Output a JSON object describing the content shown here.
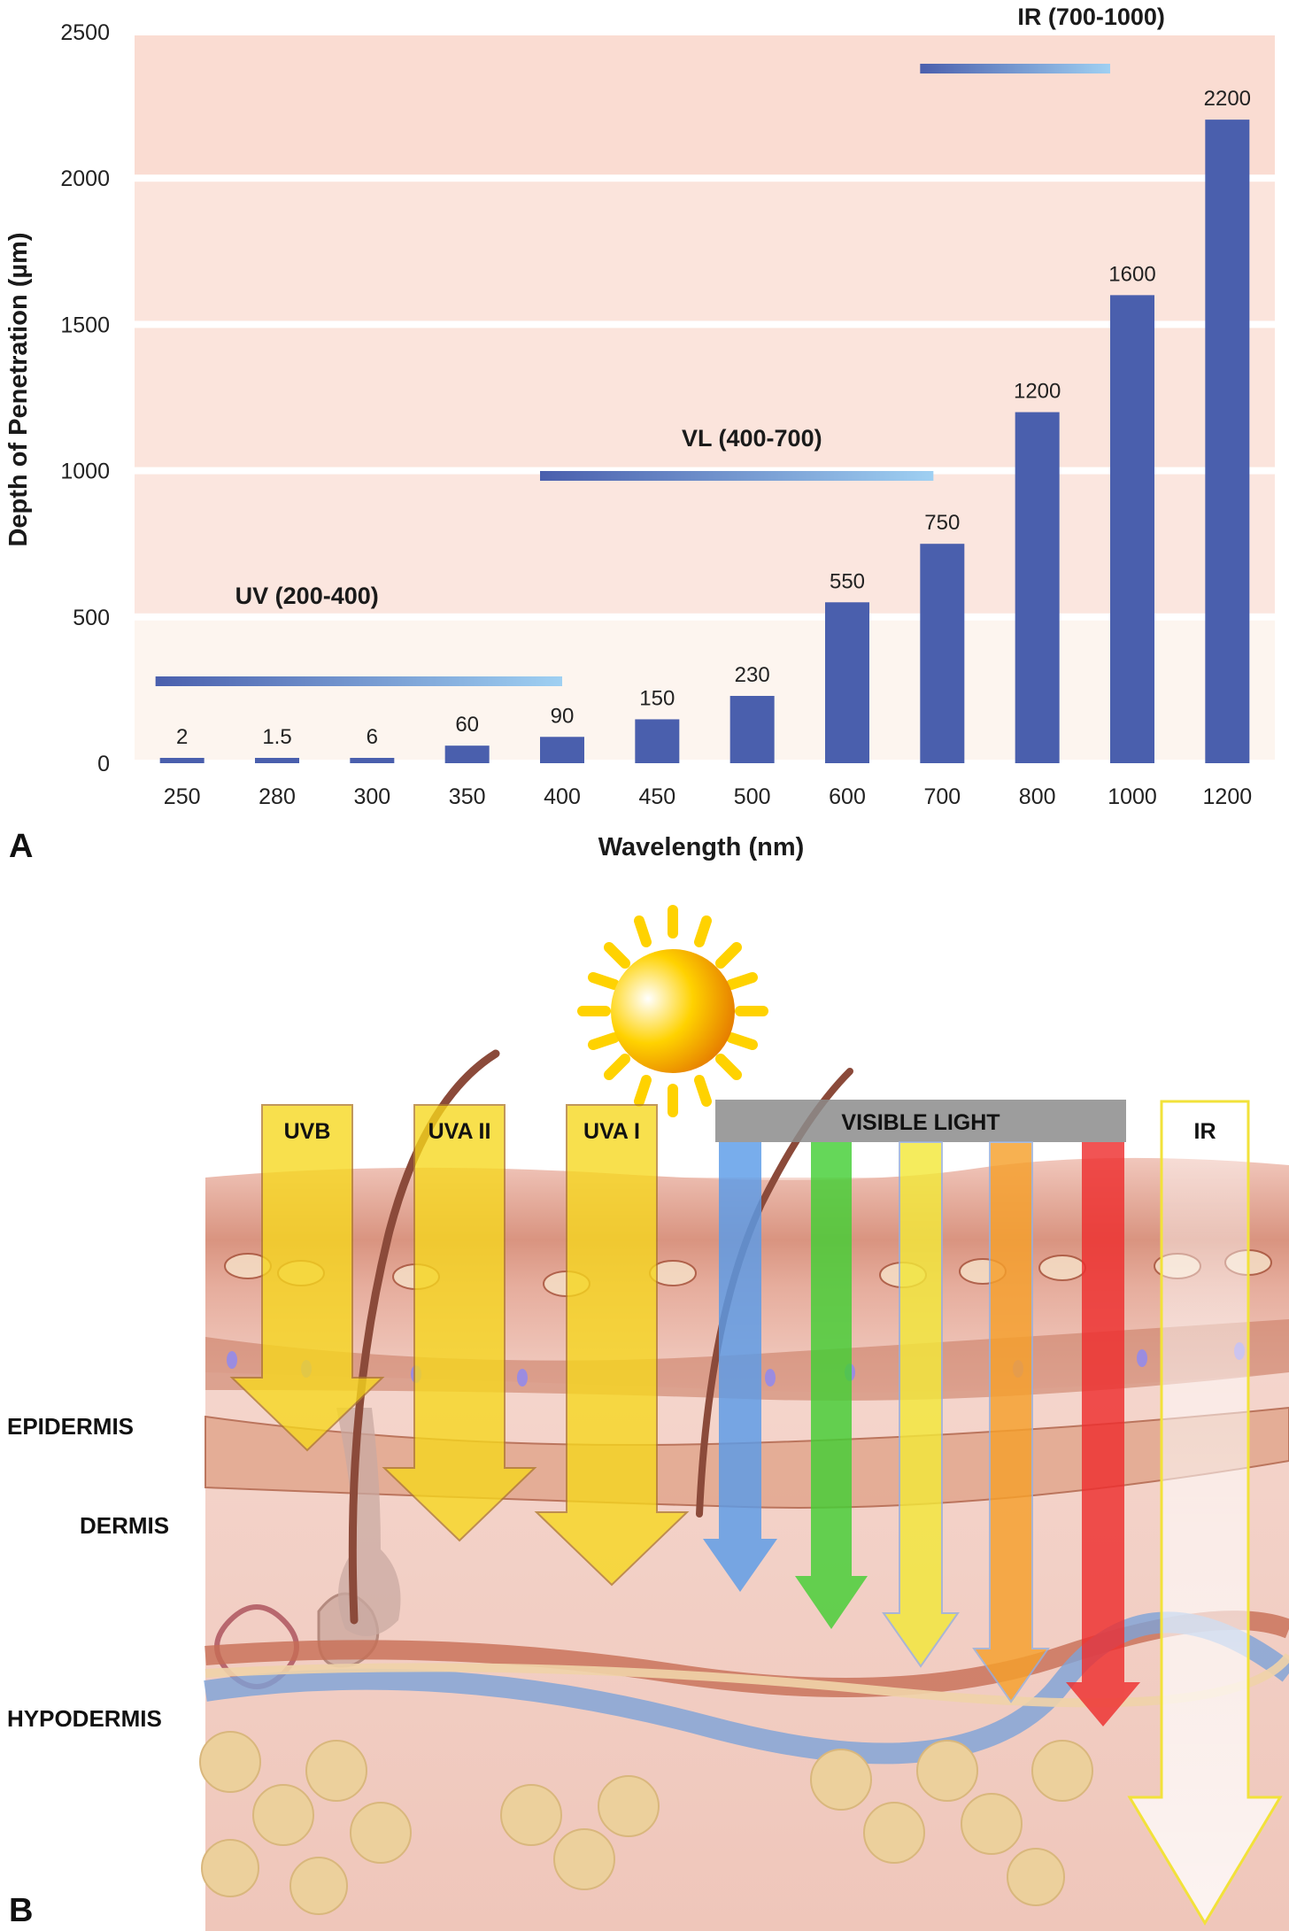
{
  "panel_a": {
    "label": "A",
    "chart_data": {
      "type": "bar",
      "categories": [
        "250",
        "280",
        "300",
        "350",
        "400",
        "450",
        "500",
        "600",
        "700",
        "800",
        "1000",
        "1200"
      ],
      "values": [
        2,
        1.5,
        6,
        60,
        90,
        150,
        230,
        550,
        750,
        1200,
        1600,
        2200
      ],
      "data_labels": [
        "2",
        "1.5",
        "6",
        "60",
        "90",
        "150",
        "230",
        "550",
        "750",
        "1200",
        "1600",
        "2200"
      ],
      "title": "",
      "xlabel": "Wavelength (nm)",
      "ylabel": "Depth of Penetration (µm)",
      "ylim": [
        0,
        2500
      ],
      "yticks": [
        0,
        500,
        1000,
        1500,
        2000,
        2500
      ],
      "grid": true,
      "legend": "none",
      "bar_color": "#4a5fad",
      "ranges": [
        {
          "label": "UV (200-400)",
          "from": "250",
          "to": "400"
        },
        {
          "label": "VL (400-700)",
          "from": "400",
          "to": "700"
        },
        {
          "label": "IR (700-1000)",
          "from": "700",
          "to": "1000"
        }
      ]
    }
  },
  "panel_b": {
    "label": "B",
    "layers": [
      "EPIDERMIS",
      "DERMIS",
      "HYPODERMIS"
    ],
    "arrows": {
      "uvb": "UVB",
      "uva2": "UVA II",
      "uva1": "UVA I",
      "visible": "VISIBLE LIGHT",
      "ir": "IR"
    },
    "colors": {
      "uv_arrow": "#f7d81c",
      "blue": "#5a9be8",
      "green": "#44cf35",
      "yellow": "#f3e83a",
      "orange": "#f6a02c",
      "red": "#ee2f2f",
      "skin_top": "#e8b7a8",
      "dermis": "#f3cfc6",
      "fat": "#ebcf9a"
    }
  }
}
